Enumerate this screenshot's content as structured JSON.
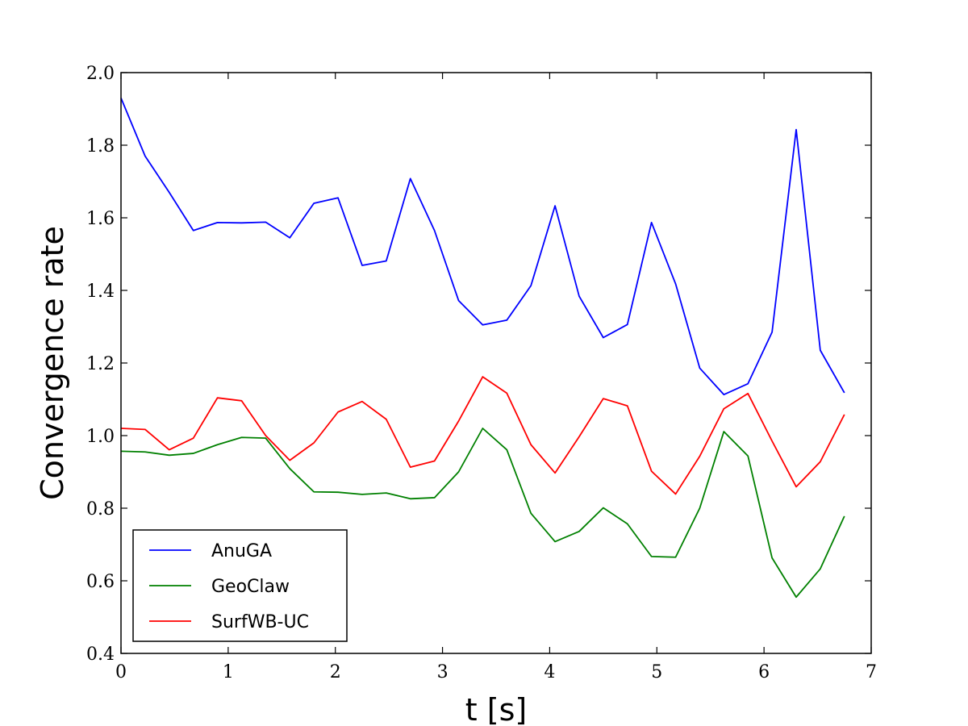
{
  "chart_data": {
    "type": "line",
    "title": "",
    "xlabel": "t [s]",
    "ylabel": "Convergence rate",
    "xlim": [
      0,
      7
    ],
    "ylim": [
      0.4,
      2.0
    ],
    "x_ticks": [
      0,
      1,
      2,
      3,
      4,
      5,
      6,
      7
    ],
    "y_ticks": [
      0.4,
      0.6,
      0.8,
      1.0,
      1.2,
      1.4,
      1.6,
      1.8,
      2.0
    ],
    "grid": false,
    "legend_placement": "lower-left",
    "x": [
      0.0,
      0.225,
      0.45,
      0.675,
      0.9,
      1.125,
      1.35,
      1.575,
      1.8,
      2.025,
      2.25,
      2.475,
      2.7,
      2.925,
      3.15,
      3.375,
      3.6,
      3.825,
      4.05,
      4.275,
      4.5,
      4.725,
      4.95,
      5.175,
      5.4,
      5.625,
      5.85,
      6.075,
      6.3,
      6.525,
      6.75
    ],
    "series": [
      {
        "name": "AnuGA",
        "color": "#0000ff",
        "values": [
          1.93,
          1.77,
          1.67,
          1.565,
          1.587,
          1.586,
          1.588,
          1.545,
          1.64,
          1.655,
          1.469,
          1.481,
          1.708,
          1.565,
          1.372,
          1.305,
          1.318,
          1.413,
          1.633,
          1.384,
          1.27,
          1.306,
          1.587,
          1.418,
          1.186,
          1.113,
          1.143,
          1.285,
          1.843,
          1.235,
          1.118
        ]
      },
      {
        "name": "GeoClaw",
        "color": "#008000",
        "values": [
          0.957,
          0.955,
          0.946,
          0.951,
          0.975,
          0.995,
          0.993,
          0.909,
          0.845,
          0.844,
          0.838,
          0.842,
          0.826,
          0.829,
          0.9,
          1.02,
          0.961,
          0.786,
          0.708,
          0.736,
          0.801,
          0.757,
          0.667,
          0.665,
          0.8,
          1.011,
          0.944,
          0.663,
          0.555,
          0.633,
          0.778
        ]
      },
      {
        "name": "SurfWB-UC",
        "color": "#ff0000",
        "values": [
          1.02,
          1.017,
          0.961,
          0.993,
          1.104,
          1.096,
          1.0,
          0.932,
          0.98,
          1.065,
          1.094,
          1.045,
          0.913,
          0.93,
          1.04,
          1.162,
          1.117,
          0.975,
          0.897,
          0.997,
          1.102,
          1.082,
          0.902,
          0.839,
          0.943,
          1.074,
          1.116,
          0.985,
          0.859,
          0.928,
          1.058
        ]
      }
    ]
  }
}
